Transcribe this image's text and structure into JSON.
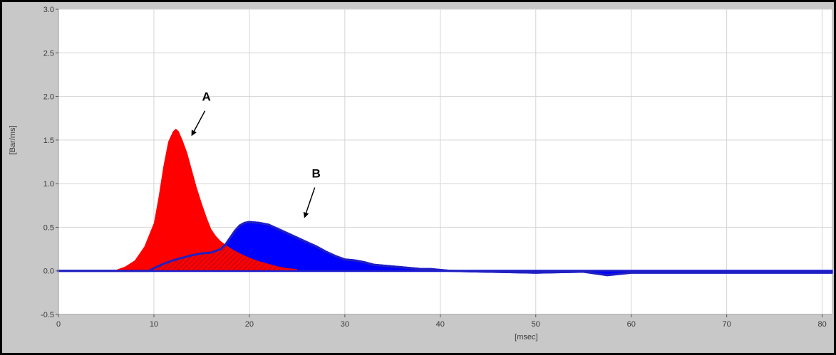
{
  "chart_data": {
    "type": "area",
    "xlabel": "[msec]",
    "ylabel": "[Bar/ms]",
    "xlim": [
      0,
      81
    ],
    "ylim": [
      -0.5,
      3.0
    ],
    "xticks": [
      "0",
      "10",
      "20",
      "30",
      "40",
      "50",
      "60",
      "70",
      "80"
    ],
    "yticks": [
      "-0.5",
      "0.0",
      "0.5",
      "1.0",
      "1.5",
      "2.0",
      "2.5",
      "3.0"
    ],
    "grid": true,
    "colors": {
      "A": "#ff0000",
      "B": "#0000ff",
      "outline_B": "#2020c0",
      "grid": "#d4d4d4",
      "background": "#ffffff"
    },
    "series": [
      {
        "x": [
          0,
          4,
          5,
          6,
          7,
          8,
          9,
          10,
          10.5,
          11,
          11.5,
          12,
          12.3,
          12.6,
          13,
          13.5,
          14,
          14.5,
          15,
          15.5,
          16,
          16.5,
          17,
          18,
          19,
          20,
          21,
          22,
          23,
          24,
          25
        ],
        "values": [
          0,
          0,
          0,
          0.01,
          0.05,
          0.12,
          0.28,
          0.55,
          0.85,
          1.2,
          1.48,
          1.6,
          1.63,
          1.6,
          1.5,
          1.35,
          1.15,
          0.95,
          0.78,
          0.62,
          0.48,
          0.4,
          0.34,
          0.26,
          0.2,
          0.15,
          0.11,
          0.08,
          0.05,
          0.03,
          0.02
        ]
      },
      {
        "x": [
          0,
          9.5,
          10,
          11,
          12,
          13,
          14,
          15,
          16,
          17,
          17.5,
          18,
          18.5,
          19,
          19.5,
          20,
          21,
          22,
          23,
          24,
          25,
          26,
          27,
          28,
          29,
          30,
          31,
          32,
          33,
          34,
          35,
          36,
          37,
          38,
          39,
          40,
          41,
          45,
          50,
          55,
          57.5,
          60,
          65,
          70,
          75,
          80,
          81
        ],
        "values": [
          0,
          0,
          0.03,
          0.08,
          0.12,
          0.15,
          0.18,
          0.2,
          0.21,
          0.25,
          0.3,
          0.38,
          0.46,
          0.52,
          0.55,
          0.56,
          0.55,
          0.53,
          0.48,
          0.43,
          0.38,
          0.33,
          0.28,
          0.22,
          0.17,
          0.13,
          0.12,
          0.1,
          0.07,
          0.06,
          0.05,
          0.04,
          0.03,
          0.02,
          0.02,
          0.01,
          0.0,
          -0.01,
          -0.02,
          -0.01,
          -0.05,
          -0.02,
          -0.02,
          -0.02,
          -0.02,
          -0.02,
          -0.02
        ]
      }
    ],
    "annotations": [
      {
        "text": "A",
        "x": 15.5,
        "y": 1.95,
        "arrow_to": [
          14,
          1.56
        ]
      },
      {
        "text": "B",
        "x": 27,
        "y": 1.07,
        "arrow_to": [
          25.8,
          0.62
        ]
      }
    ]
  }
}
